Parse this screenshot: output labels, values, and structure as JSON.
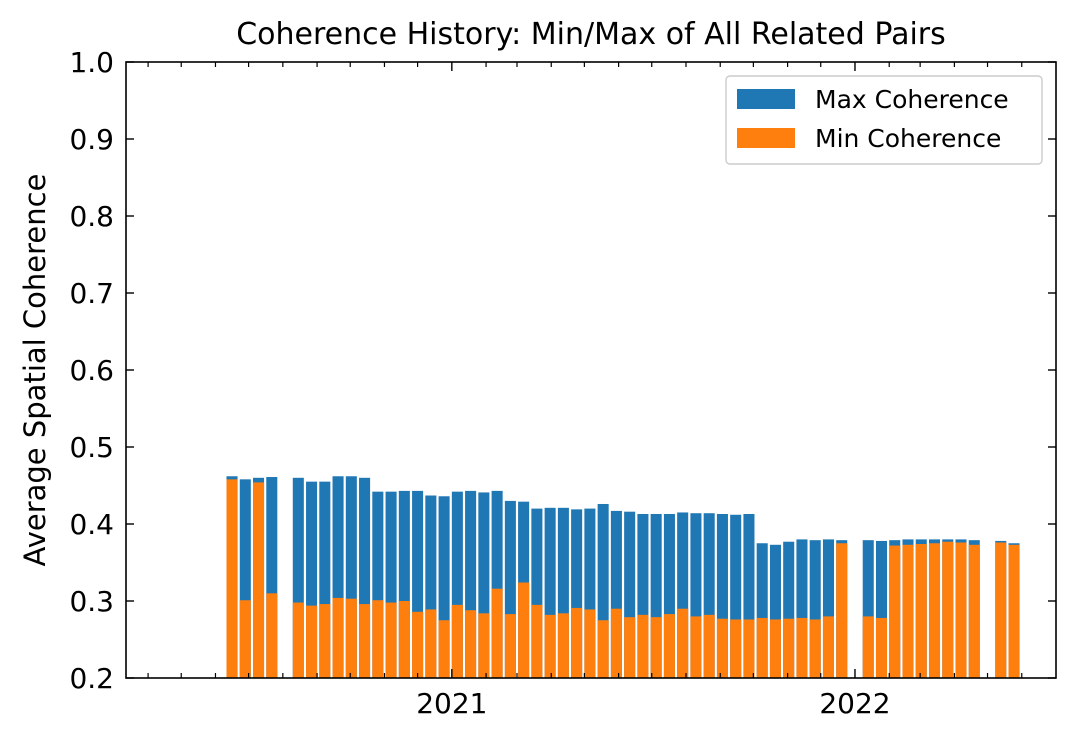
{
  "chart_data": {
    "type": "bar",
    "stacked": false,
    "title": "Coherence History: Min/Max of All Related Pairs",
    "xlabel": "",
    "ylabel": "Average Spatial Coherence",
    "ylim": [
      0.2,
      1.0
    ],
    "xlim": [
      "2020-03-12",
      "2022-07-02"
    ],
    "yticks": [
      "0.2",
      "0.3",
      "0.4",
      "0.5",
      "0.6",
      "0.7",
      "0.8",
      "0.9",
      "1.0"
    ],
    "xtick_labels": [
      {
        "date": "2021-01-01",
        "label": "2021"
      },
      {
        "date": "2022-01-01",
        "label": "2022"
      }
    ],
    "minor_xticks": [
      "2020-04-01",
      "2020-05-01",
      "2020-06-01",
      "2020-07-01",
      "2020-08-01",
      "2020-09-01",
      "2020-10-01",
      "2020-11-01",
      "2020-12-01",
      "2021-02-01",
      "2021-03-01",
      "2021-04-01",
      "2021-05-01",
      "2021-06-01",
      "2021-07-01",
      "2021-08-01",
      "2021-09-01",
      "2021-10-01",
      "2021-11-01",
      "2021-12-01",
      "2022-02-01",
      "2022-03-01",
      "2022-04-01",
      "2022-05-01",
      "2022-06-01"
    ],
    "legend_position": "top-right",
    "grid": false,
    "series": [
      {
        "name": "Max Coherence",
        "color": "#1f77b4"
      },
      {
        "name": "Min Coherence",
        "color": "#ff7f0e"
      }
    ],
    "x": [
      "2020-06-16",
      "2020-06-28",
      "2020-07-10",
      "2020-07-22",
      "2020-08-15",
      "2020-08-27",
      "2020-09-08",
      "2020-09-20",
      "2020-10-02",
      "2020-10-14",
      "2020-10-26",
      "2020-11-07",
      "2020-11-19",
      "2020-12-01",
      "2020-12-13",
      "2020-12-25",
      "2021-01-06",
      "2021-01-18",
      "2021-01-30",
      "2021-02-11",
      "2021-02-23",
      "2021-03-07",
      "2021-03-19",
      "2021-03-31",
      "2021-04-12",
      "2021-04-24",
      "2021-05-06",
      "2021-05-18",
      "2021-05-30",
      "2021-06-11",
      "2021-06-23",
      "2021-07-05",
      "2021-07-17",
      "2021-07-29",
      "2021-08-10",
      "2021-08-22",
      "2021-09-03",
      "2021-09-15",
      "2021-09-27",
      "2021-10-09",
      "2021-10-21",
      "2021-11-02",
      "2021-11-14",
      "2021-11-26",
      "2021-12-08",
      "2021-12-20",
      "2022-01-13",
      "2022-01-25",
      "2022-02-06",
      "2022-02-18",
      "2022-03-02",
      "2022-03-14",
      "2022-03-26",
      "2022-04-07",
      "2022-04-19",
      "2022-05-13",
      "2022-05-25"
    ],
    "max_values": [
      0.462,
      0.458,
      0.46,
      0.461,
      0.46,
      0.455,
      0.455,
      0.462,
      0.462,
      0.46,
      0.442,
      0.442,
      0.443,
      0.443,
      0.437,
      0.436,
      0.442,
      0.443,
      0.441,
      0.443,
      0.43,
      0.429,
      0.42,
      0.421,
      0.421,
      0.419,
      0.42,
      0.426,
      0.417,
      0.416,
      0.413,
      0.413,
      0.413,
      0.415,
      0.414,
      0.414,
      0.413,
      0.412,
      0.413,
      0.375,
      0.373,
      0.377,
      0.38,
      0.379,
      0.38,
      0.379,
      0.379,
      0.378,
      0.379,
      0.38,
      0.38,
      0.38,
      0.38,
      0.38,
      0.379,
      0.378,
      0.375
    ],
    "min_values": [
      0.458,
      0.301,
      0.454,
      0.31,
      0.298,
      0.294,
      0.296,
      0.304,
      0.303,
      0.296,
      0.301,
      0.298,
      0.3,
      0.286,
      0.289,
      0.275,
      0.295,
      0.288,
      0.284,
      0.316,
      0.283,
      0.324,
      0.295,
      0.282,
      0.284,
      0.291,
      0.289,
      0.275,
      0.29,
      0.279,
      0.282,
      0.279,
      0.283,
      0.29,
      0.28,
      0.282,
      0.277,
      0.276,
      0.276,
      0.278,
      0.276,
      0.277,
      0.278,
      0.276,
      0.28,
      0.375,
      0.28,
      0.278,
      0.372,
      0.373,
      0.374,
      0.375,
      0.377,
      0.376,
      0.373,
      0.376,
      0.373
    ]
  }
}
